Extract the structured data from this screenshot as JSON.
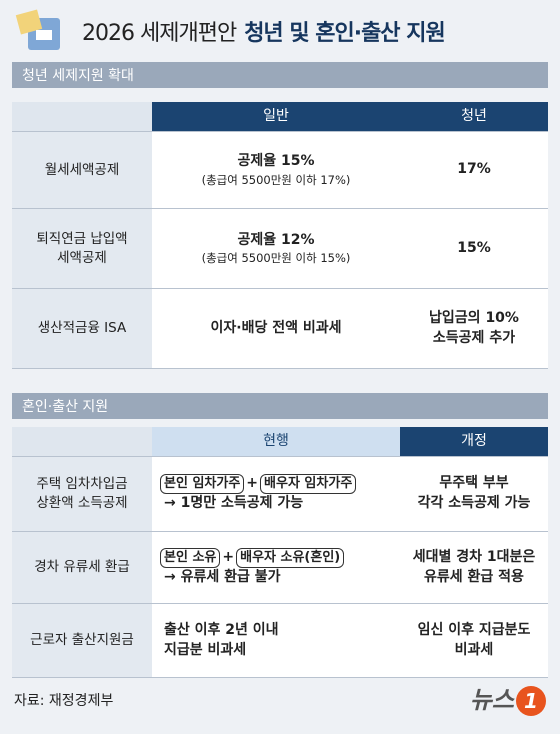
{
  "header": {
    "title_light": "2026 세제개편안",
    "title_bold": "청년 및 혼인·출산 지원"
  },
  "section1": {
    "heading": "청년 세제지원 확대",
    "columns": [
      "일반",
      "청년"
    ],
    "rows": [
      {
        "label": "월세세액공제",
        "general": "공제율 15%",
        "general_note": "(총급여 5500만원 이하 17%)",
        "youth": "17%"
      },
      {
        "label": "퇴직연금 납입액\n세액공제",
        "general": "공제율 12%",
        "general_note": "(총급여 5500만원 이하 15%)",
        "youth": "15%"
      },
      {
        "label": "생산적금융 ISA",
        "general": "이자·배당 전액 비과세",
        "youth": "납입금의 10%\n소득공제 추가"
      }
    ]
  },
  "section2": {
    "heading": "혼인·출산 지원",
    "columns": [
      "현행",
      "개정"
    ],
    "rows": [
      {
        "label": "주택 임차차입금\n상환액 소득공제",
        "current_boxes": [
          "본인 임차가주",
          "배우자 임차가주"
        ],
        "current_plus": "+",
        "current_result": "→ 1명만 소득공제 가능",
        "revised": "무주택 부부\n각각 소득공제 가능"
      },
      {
        "label": "경차 유류세 환급",
        "current_boxes": [
          "본인 소유",
          "배우자 소유(혼인)"
        ],
        "current_plus": "+",
        "current_result": "→ 유류세 환급 불가",
        "revised": "세대별 경차 1대분은\n유류세 환급 적용"
      },
      {
        "label": "근로자 출산지원금",
        "current": "출산 이후 2년 이내\n지급분 비과세",
        "revised": "임신 이후 지급분도\n비과세"
      }
    ]
  },
  "footer": {
    "source": "자료: 재정경제부",
    "brand": "뉴스",
    "brand_number": "1"
  }
}
